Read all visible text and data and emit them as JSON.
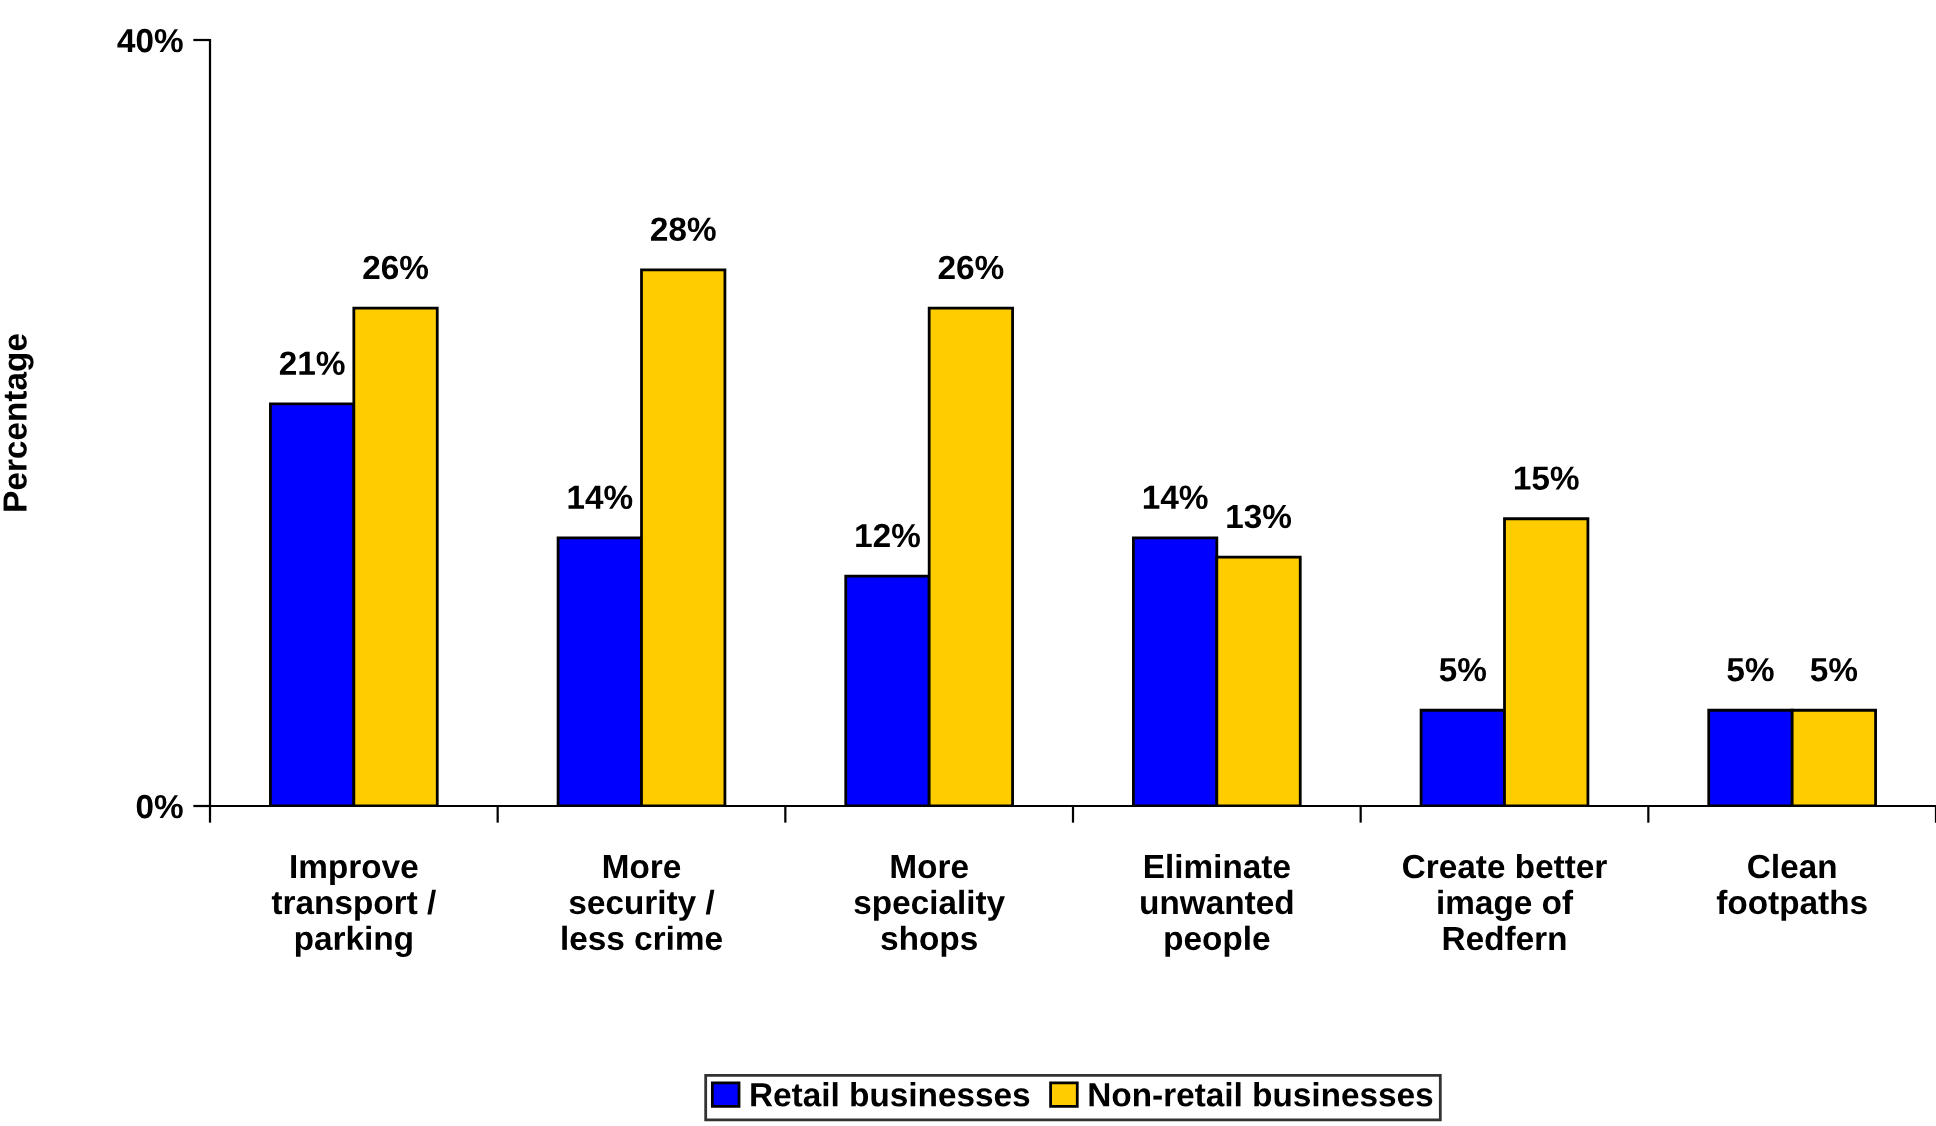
{
  "chart_data": {
    "type": "bar",
    "ylabel": "Percentage",
    "categories": [
      "Improve\ntransport /\nparking",
      "More\nsecurity /\nless crime",
      "More\nspeciality\nshops",
      "Eliminate\nunwanted\npeople",
      "Create better\nimage of\nRedfern",
      "Clean\nfootpaths"
    ],
    "series": [
      {
        "name": "Retail businesses",
        "color": "#0000ff",
        "values": [
          21,
          14,
          12,
          14,
          5,
          5
        ],
        "value_labels": [
          "21%",
          "14%",
          "12%",
          "14%",
          "5%",
          "5%"
        ]
      },
      {
        "name": "Non-retail businesses",
        "color": "#ffcc00",
        "values": [
          26,
          28,
          26,
          13,
          15,
          5
        ],
        "value_labels": [
          "26%",
          "28%",
          "26%",
          "13%",
          "15%",
          "5%"
        ]
      }
    ],
    "ylim": [
      0,
      40
    ],
    "yticks": [
      {
        "value": 0,
        "label": "0%"
      },
      {
        "value": 40,
        "label": "40%"
      }
    ],
    "grid": false,
    "legend": "bottom"
  }
}
